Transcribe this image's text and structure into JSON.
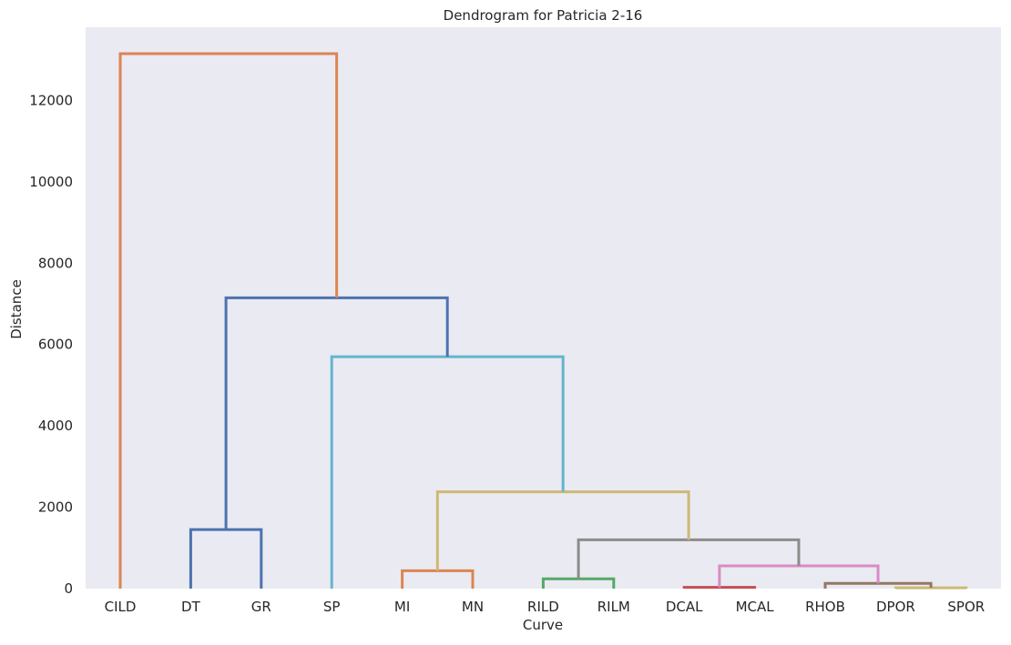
{
  "chart_data": {
    "type": "dendrogram",
    "title": "Dendrogram for Patricia 2-16",
    "xlabel": "Curve",
    "ylabel": "Distance",
    "ylim": [
      0,
      13800
    ],
    "yticks": [
      0,
      2000,
      4000,
      6000,
      8000,
      10000,
      12000
    ],
    "leaves": [
      "CILD",
      "DT",
      "GR",
      "SP",
      "MI",
      "MN",
      "RILD",
      "RILM",
      "DCAL",
      "MCAL",
      "RHOB",
      "DPOR",
      "SPOR"
    ],
    "grid": false,
    "background": "#eaeaf2",
    "links": [
      {
        "left": "DT",
        "right": "GR",
        "height": 1450,
        "color": "#4c72b0"
      },
      {
        "left": "MI",
        "right": "MN",
        "height": 440,
        "color": "#dd8452"
      },
      {
        "left": "RILD",
        "right": "RILM",
        "height": 240,
        "color": "#55a868"
      },
      {
        "left": "DCAL",
        "right": "MCAL",
        "height": 30,
        "color": "#c44e52"
      },
      {
        "left": "DPOR",
        "right": "SPOR",
        "height": 20,
        "color": "#ccb974"
      },
      {
        "left": "RHOB",
        "right": "DPOR+SPOR",
        "height": 130,
        "color": "#937860"
      },
      {
        "left": "DCAL+MCAL",
        "right": "RHOB+DPOR+SPOR",
        "height": 560,
        "color": "#da8bc3"
      },
      {
        "left": "RILD+RILM",
        "right": "DCAL+MCAL+RHOB+DPOR+SPOR",
        "height": 1200,
        "color": "#8c8c8c"
      },
      {
        "left": "MI+MN",
        "right": "RILD..SPOR",
        "height": 2380,
        "color": "#ccb974"
      },
      {
        "left": "SP",
        "right": "MI..SPOR",
        "height": 5700,
        "color": "#64b5cd"
      },
      {
        "left": "DT+GR",
        "right": "SP..SPOR",
        "height": 7150,
        "color": "#4c72b0"
      },
      {
        "left": "CILD",
        "right": "DT..SPOR",
        "height": 13150,
        "color": "#dd8452"
      }
    ]
  }
}
